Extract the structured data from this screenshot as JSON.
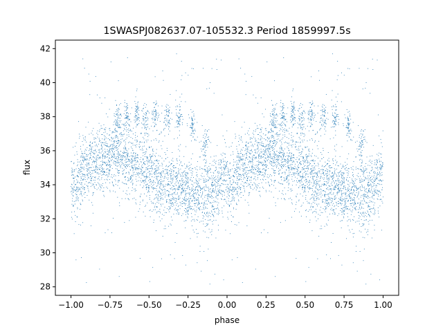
{
  "chart_data": {
    "type": "scatter",
    "title": "1SWASPJ082637.07-105532.3 Period 1859997.5s",
    "xlabel": "phase",
    "ylabel": "flux",
    "xlim": [
      -1.1,
      1.1
    ],
    "ylim": [
      27.5,
      42.5
    ],
    "xticks": [
      -1.0,
      -0.75,
      -0.5,
      -0.25,
      0.0,
      0.25,
      0.5,
      0.75,
      1.0
    ],
    "xtick_labels": [
      "−1.00",
      "−0.75",
      "−0.50",
      "−0.25",
      "0.00",
      "0.25",
      "0.50",
      "0.75",
      "1.00"
    ],
    "yticks": [
      28,
      30,
      32,
      34,
      36,
      38,
      40,
      42
    ],
    "ytick_labels": [
      "28",
      "30",
      "32",
      "34",
      "36",
      "38",
      "40",
      "42"
    ],
    "grid": false,
    "marker_color": "#1f77b4",
    "series": [
      {
        "description": "phase-folded light curve, mirrored over two cycles",
        "trend": {
          "phase": [
            0.0,
            0.05,
            0.1,
            0.15,
            0.2,
            0.25,
            0.3,
            0.35,
            0.4,
            0.45,
            0.5,
            0.55,
            0.6,
            0.65,
            0.7,
            0.75,
            0.8,
            0.85,
            0.9,
            0.95,
            1.0
          ],
          "flux": [
            33.6,
            34.3,
            35.0,
            35.4,
            35.6,
            35.7,
            35.9,
            35.6,
            35.3,
            35.0,
            34.7,
            34.3,
            34.0,
            33.8,
            34.0,
            33.6,
            33.3,
            33.2,
            33.6,
            34.0,
            35.1
          ]
        },
        "scatter_sigma": 1.0,
        "upper_clumps": [
          {
            "phase": 0.3,
            "flux": 37.9
          },
          {
            "phase": 0.36,
            "flux": 38.0
          },
          {
            "phase": 0.42,
            "flux": 38.1
          },
          {
            "phase": 0.48,
            "flux": 37.8
          },
          {
            "phase": 0.54,
            "flux": 38.1
          },
          {
            "phase": 0.62,
            "flux": 38.0
          },
          {
            "phase": 0.69,
            "flux": 37.9
          },
          {
            "phase": 0.78,
            "flux": 37.4
          },
          {
            "phase": 0.86,
            "flux": 36.4
          }
        ],
        "outlier_range": [
          28.0,
          41.8
        ]
      }
    ]
  }
}
